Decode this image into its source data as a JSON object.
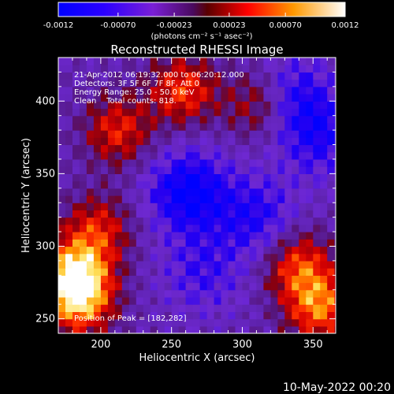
{
  "chart_data": {
    "type": "heatmap",
    "title": "Reconstructed RHESSI Image",
    "xlabel": "Heliocentric X (arcsec)",
    "ylabel": "Heliocentric Y (arcsec)",
    "xlim": [
      170,
      366
    ],
    "ylim": [
      240,
      430
    ],
    "x_ticks": [
      200,
      250,
      300,
      350
    ],
    "y_ticks": [
      250,
      300,
      350,
      400
    ],
    "colorbar": {
      "ticks": [
        "-0.0012",
        "-0.00070",
        "-0.00023",
        "0.00023",
        "0.00070",
        "0.0012"
      ],
      "range": [
        -0.0012,
        0.0012
      ],
      "unit_label": "(photons cm⁻² s⁻¹ asec⁻²)"
    },
    "annotations": [
      "21-Apr-2012 06:19:32.000 to 06:20:12.000",
      "Detectors: 3F 5F 6F 7F 8F, Att 0",
      "Energy Range: 25.0 - 50.0 keV",
      "Clean    Total counts: 818."
    ],
    "peak_label": "Position of Peak = [182,282]",
    "peak_position": [
      182,
      282
    ],
    "hot_regions": [
      {
        "x": 182,
        "y": 282,
        "value": 0.0012
      },
      {
        "x": 185,
        "y": 262,
        "value": 0.0011
      },
      {
        "x": 355,
        "y": 258,
        "value": 0.00105
      },
      {
        "x": 340,
        "y": 287,
        "value": 0.0009
      },
      {
        "x": 258,
        "y": 408,
        "value": 0.0009
      },
      {
        "x": 212,
        "y": 380,
        "value": 0.0008
      },
      {
        "x": 198,
        "y": 312,
        "value": 0.00075
      },
      {
        "x": 312,
        "y": 398,
        "value": 0.0007
      }
    ],
    "cold_regions": [
      {
        "x": 262,
        "y": 338,
        "value": -0.0009
      },
      {
        "x": 310,
        "y": 320,
        "value": -0.0006
      },
      {
        "x": 335,
        "y": 403,
        "value": -0.00065
      },
      {
        "x": 355,
        "y": 375,
        "value": -0.00055
      },
      {
        "x": 272,
        "y": 282,
        "value": -0.00045
      }
    ]
  },
  "footer": {
    "timestamp": "10-May-2022 00:20"
  }
}
